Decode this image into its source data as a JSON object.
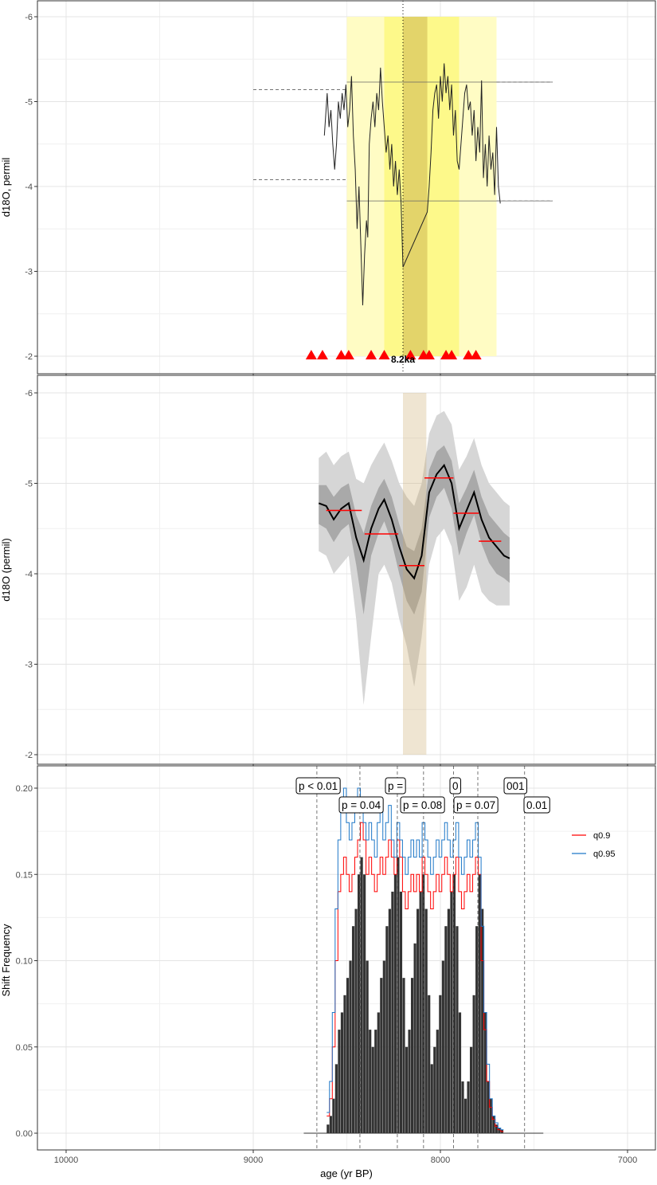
{
  "chart_data": [
    {
      "type": "line",
      "panel": "raw-record",
      "ylabel": "d18O, permil",
      "ylim": [
        -6,
        -2
      ],
      "y_reversed": true,
      "yticks": [
        -6,
        -5,
        -4,
        -3,
        -2
      ],
      "ytick_labels": [
        "-6",
        "-5",
        "-4",
        "-3",
        "-2"
      ],
      "event_label": "8.2ka",
      "event_age": 8200,
      "shaded_regions": [
        {
          "from": 8500,
          "to": 7700,
          "color": "#fffcc4"
        },
        {
          "from": 8300,
          "to": 7900,
          "color": "#fdf98a"
        },
        {
          "from": 8200,
          "to": 8070,
          "color": "#e3d46a"
        }
      ],
      "reference_lines": [
        {
          "from": 9000,
          "to": 8500,
          "value": -5.14,
          "style": "dashed"
        },
        {
          "from": 9000,
          "to": 8500,
          "value": -4.08,
          "style": "dashed"
        },
        {
          "from": 7700,
          "to": 7400,
          "value": -5.23,
          "style": "dashed"
        },
        {
          "from": 7700,
          "to": 7400,
          "value": -3.83,
          "style": "dashed"
        },
        {
          "from": 8500,
          "to": 7400,
          "value": -5.23,
          "style": "solid"
        },
        {
          "from": 8500,
          "to": 7400,
          "value": -3.83,
          "style": "solid"
        }
      ],
      "series_age": [
        8620,
        8605,
        8595,
        8585,
        8575,
        8565,
        8555,
        8545,
        8535,
        8525,
        8515,
        8505,
        8495,
        8485,
        8475,
        8465,
        8455,
        8445,
        8435,
        8425,
        8415,
        8405,
        8395,
        8388,
        8380,
        8370,
        8360,
        8350,
        8340,
        8330,
        8320,
        8310,
        8300,
        8290,
        8280,
        8270,
        8260,
        8250,
        8240,
        8230,
        8220,
        8210,
        8200,
        8070,
        8060,
        8050,
        8040,
        8030,
        8020,
        8010,
        8000,
        7990,
        7980,
        7970,
        7960,
        7950,
        7940,
        7930,
        7920,
        7910,
        7900,
        7890,
        7880,
        7870,
        7860,
        7850,
        7840,
        7830,
        7820,
        7810,
        7800,
        7790,
        7780,
        7770,
        7760,
        7750,
        7740,
        7730,
        7720,
        7710,
        7700,
        7690,
        7680
      ],
      "series_value": [
        -4.6,
        -5.1,
        -4.7,
        -4.9,
        -4.5,
        -4.2,
        -4.5,
        -5.0,
        -4.8,
        -5.1,
        -4.9,
        -5.2,
        -4.7,
        -4.9,
        -5.3,
        -4.6,
        -4.2,
        -3.5,
        -4.0,
        -3.3,
        -2.6,
        -3.2,
        -3.6,
        -3.4,
        -4.5,
        -4.8,
        -5.0,
        -4.7,
        -5.1,
        -4.9,
        -5.4,
        -5.0,
        -4.7,
        -4.4,
        -4.6,
        -4.2,
        -4.5,
        -4.0,
        -4.3,
        -3.9,
        -4.2,
        -3.8,
        -3.05,
        -3.7,
        -4.0,
        -4.4,
        -4.9,
        -5.1,
        -5.2,
        -4.8,
        -5.3,
        -5.0,
        -5.45,
        -5.1,
        -5.3,
        -4.9,
        -5.2,
        -4.6,
        -4.9,
        -4.3,
        -4.2,
        -4.5,
        -4.8,
        -5.1,
        -5.2,
        -4.9,
        -5.0,
        -4.6,
        -4.9,
        -4.3,
        -4.7,
        -4.4,
        -5.25,
        -4.1,
        -4.5,
        -4.0,
        -4.6,
        -4.2,
        -4.4,
        -3.9,
        -4.7,
        -4.0,
        -3.8
      ],
      "event_markers_age": [
        8690,
        8630,
        8530,
        8490,
        8370,
        8300,
        8160,
        8090,
        8060,
        7970,
        7940,
        7850,
        7810
      ],
      "event_markers_color": "#ff0000"
    },
    {
      "type": "line",
      "panel": "ensemble",
      "ylabel": "d18O (permil)",
      "ylim": [
        -6,
        -2
      ],
      "y_reversed": true,
      "yticks": [
        -6,
        -5,
        -4,
        -3,
        -2
      ],
      "ytick_labels": [
        "-6",
        "-5",
        "-4",
        "-3",
        "-2"
      ],
      "event_band": {
        "from": 8200,
        "to": 8075,
        "color": "#ede0c4"
      },
      "age": [
        8650,
        8610,
        8570,
        8530,
        8490,
        8450,
        8410,
        8370,
        8330,
        8300,
        8260,
        8220,
        8180,
        8140,
        8100,
        8060,
        8020,
        7980,
        7940,
        7900,
        7860,
        7820,
        7780,
        7740,
        7700,
        7660,
        7630
      ],
      "mean": [
        -4.78,
        -4.75,
        -4.6,
        -4.72,
        -4.78,
        -4.4,
        -4.15,
        -4.5,
        -4.72,
        -4.82,
        -4.6,
        -4.3,
        -4.05,
        -3.95,
        -4.2,
        -4.9,
        -5.1,
        -5.2,
        -5.0,
        -4.5,
        -4.7,
        -4.9,
        -4.6,
        -4.4,
        -4.3,
        -4.2,
        -4.17
      ],
      "inner_upper": [
        -4.98,
        -4.98,
        -4.85,
        -4.95,
        -5.0,
        -4.65,
        -4.45,
        -4.75,
        -4.95,
        -5.05,
        -4.85,
        -4.55,
        -4.3,
        -4.25,
        -4.5,
        -5.15,
        -5.35,
        -5.42,
        -5.25,
        -4.78,
        -4.95,
        -5.15,
        -4.85,
        -4.65,
        -4.55,
        -4.45,
        -4.4
      ],
      "inner_lower": [
        -4.55,
        -4.5,
        -4.35,
        -4.48,
        -4.55,
        -4.1,
        -3.55,
        -4.2,
        -4.45,
        -4.58,
        -4.35,
        -4.0,
        -3.7,
        -3.55,
        -3.8,
        -4.62,
        -4.85,
        -4.95,
        -4.72,
        -4.2,
        -4.45,
        -4.65,
        -4.33,
        -4.12,
        -4.0,
        -3.95,
        -3.9
      ],
      "outer_upper": [
        -5.28,
        -5.35,
        -5.2,
        -5.3,
        -5.35,
        -5.05,
        -5.0,
        -5.2,
        -5.35,
        -5.45,
        -5.25,
        -5.0,
        -4.85,
        -4.75,
        -5.0,
        -5.55,
        -5.75,
        -5.8,
        -5.65,
        -5.15,
        -5.3,
        -5.5,
        -5.2,
        -5.0,
        -4.9,
        -4.8,
        -4.75
      ],
      "outer_lower": [
        -4.25,
        -4.2,
        -4.0,
        -4.1,
        -4.2,
        -3.5,
        -2.55,
        -3.3,
        -4.0,
        -4.1,
        -3.9,
        -3.5,
        -3.2,
        -2.75,
        -3.3,
        -4.1,
        -4.4,
        -4.5,
        -4.3,
        -3.7,
        -3.85,
        -4.1,
        -3.8,
        -3.7,
        -3.65,
        -3.65,
        -3.65
      ],
      "mean_color": "#000000",
      "segments": [
        {
          "from": 8610,
          "to": 8420,
          "value": -4.7
        },
        {
          "from": 8405,
          "to": 8225,
          "value": -4.44
        },
        {
          "from": 8220,
          "to": 8085,
          "value": -4.09
        },
        {
          "from": 8085,
          "to": 7930,
          "value": -5.06
        },
        {
          "from": 7930,
          "to": 7795,
          "value": -4.67
        },
        {
          "from": 7795,
          "to": 7675,
          "value": -4.36
        }
      ],
      "segment_color": "#ff0000"
    },
    {
      "type": "bar",
      "panel": "shift-frequency",
      "title": "",
      "xlabel": "age (yr BP)",
      "ylabel": "Shift Frequency",
      "xlim": [
        10150,
        6870
      ],
      "x_reversed": true,
      "xticks": [
        10000,
        9000,
        8000,
        7000
      ],
      "xtick_labels": [
        "10000",
        "9000",
        "8000",
        "7000"
      ],
      "ylim": [
        0,
        0.21
      ],
      "yticks": [
        0,
        0.05,
        0.1,
        0.15,
        0.2
      ],
      "ytick_labels": [
        "0.00",
        "0.05",
        "0.10",
        "0.15",
        "0.20"
      ],
      "bin_width": 15,
      "bin_start_age": 8600,
      "frequency": [
        0.005,
        0.01,
        0.02,
        0.04,
        0.06,
        0.07,
        0.08,
        0.09,
        0.1,
        0.12,
        0.13,
        0.15,
        0.16,
        0.15,
        0.1,
        0.06,
        0.05,
        0.06,
        0.07,
        0.09,
        0.1,
        0.12,
        0.13,
        0.14,
        0.15,
        0.16,
        0.14,
        0.09,
        0.05,
        0.06,
        0.09,
        0.11,
        0.13,
        0.14,
        0.15,
        0.13,
        0.08,
        0.04,
        0.05,
        0.06,
        0.08,
        0.1,
        0.12,
        0.13,
        0.14,
        0.15,
        0.12,
        0.07,
        0.03,
        0.02,
        0.03,
        0.05,
        0.08,
        0.12,
        0.15,
        0.13,
        0.07,
        0.03,
        0.02,
        0.01,
        0.005,
        0.003,
        0.002
      ],
      "q09": [
        0.01,
        0.02,
        0.05,
        0.1,
        0.14,
        0.15,
        0.16,
        0.15,
        0.14,
        0.15,
        0.16,
        0.17,
        0.18,
        0.17,
        0.15,
        0.16,
        0.15,
        0.14,
        0.15,
        0.16,
        0.15,
        0.16,
        0.17,
        0.16,
        0.15,
        0.17,
        0.16,
        0.14,
        0.13,
        0.14,
        0.15,
        0.14,
        0.15,
        0.14,
        0.16,
        0.15,
        0.14,
        0.13,
        0.14,
        0.15,
        0.14,
        0.15,
        0.16,
        0.15,
        0.14,
        0.15,
        0.16,
        0.14,
        0.13,
        0.14,
        0.15,
        0.14,
        0.15,
        0.16,
        0.15,
        0.1,
        0.06,
        0.03,
        0.015,
        0.008,
        0.004,
        0.002,
        0.001
      ],
      "q095": [
        0.012,
        0.03,
        0.07,
        0.13,
        0.17,
        0.19,
        0.2,
        0.18,
        0.17,
        0.18,
        0.19,
        0.2,
        0.19,
        0.18,
        0.17,
        0.18,
        0.17,
        0.16,
        0.18,
        0.19,
        0.17,
        0.18,
        0.19,
        0.17,
        0.16,
        0.18,
        0.17,
        0.16,
        0.15,
        0.16,
        0.17,
        0.16,
        0.17,
        0.16,
        0.18,
        0.17,
        0.16,
        0.15,
        0.16,
        0.17,
        0.16,
        0.17,
        0.18,
        0.17,
        0.16,
        0.17,
        0.18,
        0.16,
        0.15,
        0.16,
        0.17,
        0.16,
        0.17,
        0.18,
        0.16,
        0.12,
        0.07,
        0.04,
        0.02,
        0.01,
        0.006,
        0.003,
        0.002
      ],
      "shift_ages": [
        8660,
        8430,
        8230,
        8090,
        7930,
        7800,
        7550
      ],
      "p_labels": [
        "p < 0.01",
        "p = 0.04",
        "p =",
        "p = 0.08",
        "0",
        "p = 0.07",
        "001",
        "0.01"
      ],
      "legend": {
        "position": "right",
        "entries": [
          {
            "label": "q0.9",
            "color": "#ff0000"
          },
          {
            "label": "q0.95",
            "color": "#1f78c8"
          }
        ]
      },
      "bar_color": "#333333"
    }
  ]
}
